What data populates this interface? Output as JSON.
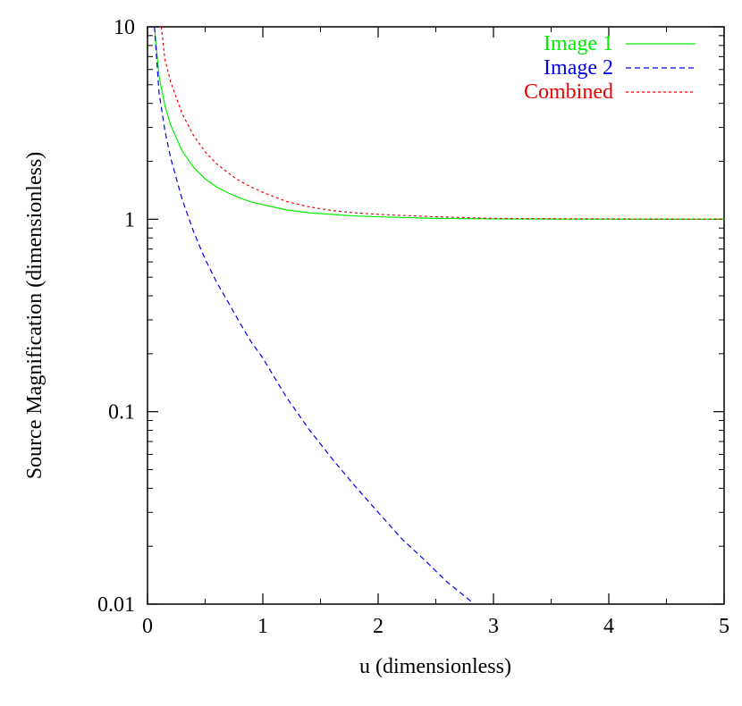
{
  "chart_data": {
    "type": "line",
    "title": "",
    "xlabel": "u (dimensionless)",
    "ylabel": "Source Magnification (dimensionless)",
    "xlim": [
      0,
      5
    ],
    "ylim": [
      0.01,
      10
    ],
    "yscale": "log",
    "grid": false,
    "legend_position": "top-right",
    "x_ticks": [
      "0",
      "1",
      "2",
      "3",
      "4",
      "5"
    ],
    "y_ticks": [
      "0.01",
      "0.1",
      "1",
      "10"
    ],
    "series": [
      {
        "name": "Image 1",
        "color": "#00ee00",
        "dash": "solid",
        "x": [
          0.06,
          0.1,
          0.15,
          0.2,
          0.3,
          0.4,
          0.5,
          0.6,
          0.7,
          0.8,
          0.9,
          1.0,
          1.2,
          1.4,
          1.6,
          1.8,
          2.0,
          2.5,
          3.0,
          3.5,
          4.0,
          4.5,
          5.0
        ],
        "y": [
          10.0,
          5.55,
          3.91,
          3.09,
          2.27,
          1.86,
          1.62,
          1.47,
          1.37,
          1.29,
          1.23,
          1.19,
          1.12,
          1.08,
          1.06,
          1.04,
          1.03,
          1.01,
          1.004,
          1.002,
          1.001,
          1.001,
          1.0
        ]
      },
      {
        "name": "Image 2",
        "color": "#0000ee",
        "dash": "dashed",
        "x": [
          0.06,
          0.1,
          0.15,
          0.2,
          0.3,
          0.4,
          0.5,
          0.6,
          0.7,
          0.8,
          0.9,
          1.0,
          1.2,
          1.4,
          1.6,
          1.8,
          2.0,
          2.2,
          2.4,
          2.6,
          2.8,
          2.85
        ],
        "y": [
          10.0,
          4.55,
          2.91,
          2.09,
          1.27,
          0.86,
          0.62,
          0.47,
          0.37,
          0.29,
          0.23,
          0.19,
          0.12,
          0.081,
          0.057,
          0.041,
          0.03,
          0.022,
          0.017,
          0.013,
          0.0104,
          0.0097
        ]
      },
      {
        "name": "Combined",
        "color": "#ee0000",
        "dash": "dotted",
        "x": [
          0.12,
          0.15,
          0.2,
          0.3,
          0.4,
          0.5,
          0.6,
          0.7,
          0.8,
          0.9,
          1.0,
          1.2,
          1.4,
          1.6,
          1.8,
          2.0,
          2.5,
          3.0,
          3.5,
          4.0,
          4.5,
          5.0
        ],
        "y": [
          10.0,
          6.82,
          5.18,
          3.54,
          2.72,
          2.24,
          1.94,
          1.74,
          1.58,
          1.47,
          1.38,
          1.24,
          1.16,
          1.11,
          1.08,
          1.06,
          1.03,
          1.01,
          1.006,
          1.004,
          1.002,
          1.001
        ]
      }
    ]
  }
}
